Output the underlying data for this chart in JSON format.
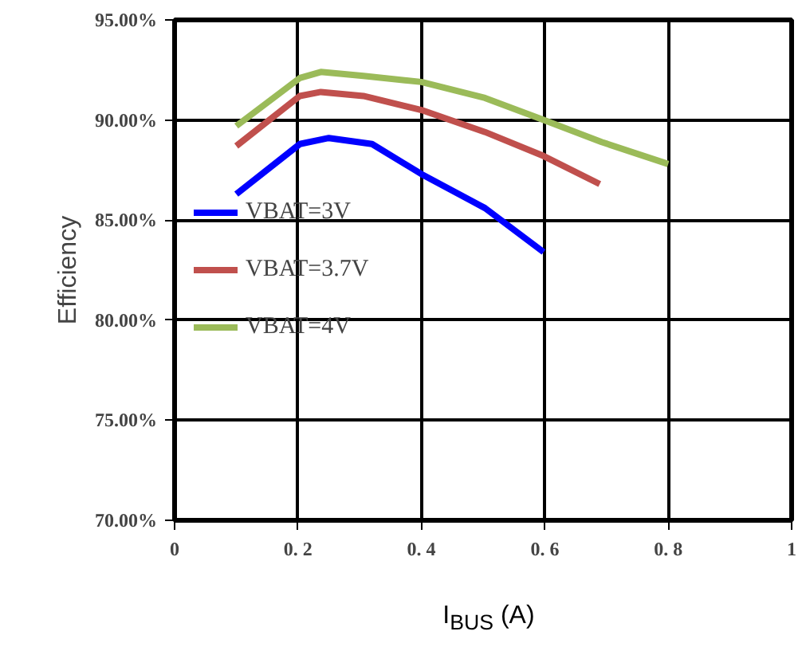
{
  "chart_data": {
    "type": "line",
    "xlabel": "I$_{BUS}$ (A)",
    "ylabel": "Efficiency",
    "xlim": [
      0,
      1
    ],
    "xticks": [
      0,
      {
        "value": 0.2,
        "label": "0. 2"
      },
      {
        "value": 0.4,
        "label": "0. 4"
      },
      {
        "value": 0.6,
        "label": "0. 6"
      },
      {
        "value": 0.8,
        "label": "0. 8"
      },
      1
    ],
    "ylim": [
      70,
      95
    ],
    "yticks": [
      {
        "value": 70,
        "label": "70.00%"
      },
      {
        "value": 75,
        "label": "75.00%"
      },
      {
        "value": 80,
        "label": "80.00%"
      },
      {
        "value": 85,
        "label": "85.00%"
      },
      {
        "value": 90,
        "label": "90.00%"
      },
      {
        "value": 95,
        "label": "95.00%"
      }
    ],
    "grid": true,
    "legend": "left",
    "line_style": "solid",
    "marker": "none",
    "series": [
      {
        "name": "VBAT=3V",
        "color": "#0000ff",
        "x": [
          0.1,
          0.203,
          0.25,
          0.32,
          0.4,
          0.503,
          0.598
        ],
        "values": [
          86.3,
          88.8,
          89.1,
          88.8,
          87.3,
          85.6,
          83.4
        ]
      },
      {
        "name": "VBAT=3.7V",
        "color": "#c0504d",
        "x": [
          0.1,
          0.203,
          0.237,
          0.306,
          0.4,
          0.503,
          0.598,
          0.689
        ],
        "values": [
          88.7,
          91.2,
          91.4,
          91.2,
          90.5,
          89.4,
          88.2,
          86.8
        ]
      },
      {
        "name": "VBAT=4V",
        "color": "#9bbb59",
        "x": [
          0.1,
          0.203,
          0.237,
          0.306,
          0.4,
          0.503,
          0.598,
          0.692,
          0.8
        ],
        "values": [
          89.7,
          92.1,
          92.4,
          92.2,
          91.9,
          91.1,
          90.0,
          88.9,
          87.8
        ]
      }
    ]
  }
}
